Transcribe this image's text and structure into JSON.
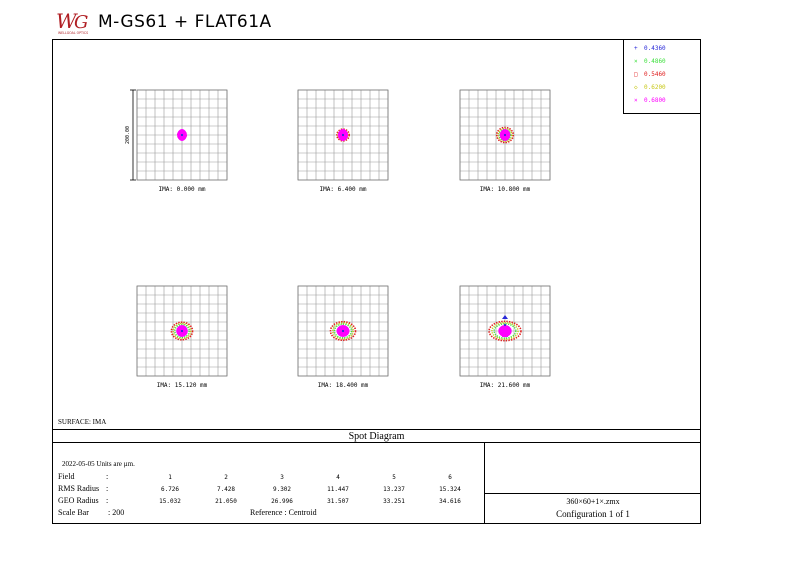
{
  "header": {
    "title": "M-GS61 + FLAT61A",
    "logo_text": "WELLGOAL OPTICS"
  },
  "surface_label": "SURFACE: IMA",
  "band_title": "Spot Diagram",
  "info": {
    "date_line": "2022-05-05  Units are µm.",
    "field_label": "Field",
    "field_colon": ":",
    "rms_label": "RMS Radius",
    "rms_colon": ":",
    "geo_label": "GEO Radius",
    "geo_colon": ":",
    "scale_label": "Scale Bar",
    "scale_value": ": 200",
    "reference": "Reference  :  Centroid",
    "fields": [
      "1",
      "2",
      "3",
      "4",
      "5",
      "6"
    ],
    "rms": [
      "6.726",
      "7.428",
      "9.302",
      "11.447",
      "13.237",
      "15.324"
    ],
    "geo": [
      "15.032",
      "21.050",
      "26.996",
      "31.507",
      "33.251",
      "34.616"
    ]
  },
  "file_name": "360×60+1×.zmx",
  "configuration": "Configuration 1 of 1",
  "colors": {
    "w1": "#2a2ad8",
    "w2": "#3ee03e",
    "w3": "#e02020",
    "w4": "#c8c818",
    "w5": "#ff00ff"
  },
  "chart_data": {
    "type": "scatter",
    "scale_bar_label": "200.00",
    "legend": [
      "0.4360",
      "0.4860",
      "0.5460",
      "0.6200",
      "0.6800"
    ],
    "panels": [
      {
        "label": "IMA: 0.000 mm",
        "geo_radius": 15.032,
        "elongation": 1.0,
        "tilt": 0
      },
      {
        "label": "IMA: 6.400 mm",
        "geo_radius": 21.05,
        "elongation": 1.05,
        "tilt": 0
      },
      {
        "label": "IMA: 10.800 mm",
        "geo_radius": 26.996,
        "elongation": 1.1,
        "tilt": 0
      },
      {
        "label": "IMA: 15.120 mm",
        "geo_radius": 31.507,
        "elongation": 1.2,
        "tilt": 0
      },
      {
        "label": "IMA: 18.400 mm",
        "geo_radius": 33.251,
        "elongation": 1.35,
        "tilt": 0
      },
      {
        "label": "IMA: 21.600 mm",
        "geo_radius": 34.616,
        "elongation": 1.65,
        "tilt": 0
      }
    ]
  }
}
